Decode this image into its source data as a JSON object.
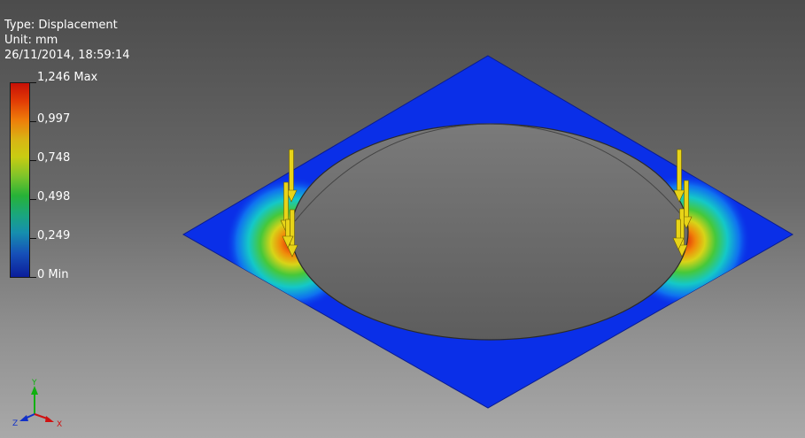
{
  "result": {
    "type_line": "Type: Displacement",
    "unit_line": "Unit: mm",
    "timestamp_line": "26/11/2014, 18:59:14"
  },
  "legend": {
    "max_label": "1,246 Max",
    "labels": [
      "0,997",
      "0,748",
      "0,498",
      "0,249"
    ],
    "min_label": "0 Min",
    "colors": [
      "#c81006",
      "#ee7d0a",
      "#c9cc12",
      "#27b237",
      "#168fae",
      "#0b1d9a"
    ]
  },
  "axes": {
    "x_label": "X",
    "y_label": "Y",
    "z_label": "Z",
    "x_color": "#d01010",
    "y_color": "#10b010",
    "z_color": "#1030c8"
  },
  "model": {
    "plate_color": "#0a2fe8",
    "hole_color": "#6e6e6e",
    "load_arrow_color": "#e8d418",
    "load_groups": [
      "left",
      "right"
    ]
  }
}
